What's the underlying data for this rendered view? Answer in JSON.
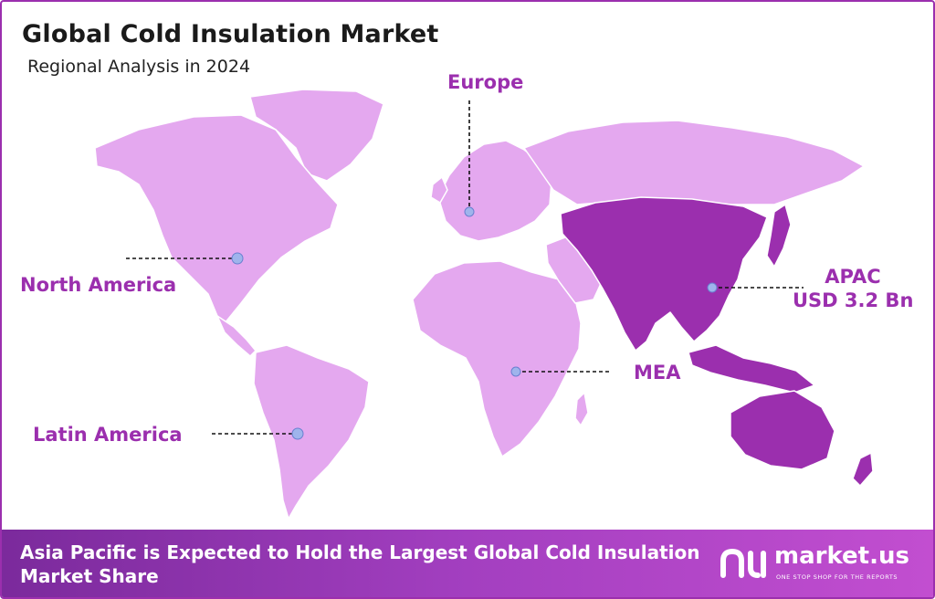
{
  "header": {
    "title": "Global Cold Insulation Market",
    "subtitle": "Regional Analysis in 2024"
  },
  "colors": {
    "region": "#e4a8ef",
    "highlight": "#9b2fae",
    "marker": "#9fb4ec",
    "accent": "#9b2fae"
  },
  "regions": {
    "north_america": {
      "label": "North America"
    },
    "latin_america": {
      "label": "Latin America"
    },
    "europe": {
      "label": "Europe"
    },
    "mea": {
      "label": "MEA"
    },
    "apac": {
      "label": "APAC",
      "value": "USD 3.2 Bn",
      "highlighted": true
    }
  },
  "footer": {
    "message": "Asia Pacific is Expected to Hold the Largest Global Cold Insulation Market Share",
    "brand": "market.us",
    "tagline": "ONE STOP SHOP FOR THE REPORTS"
  }
}
